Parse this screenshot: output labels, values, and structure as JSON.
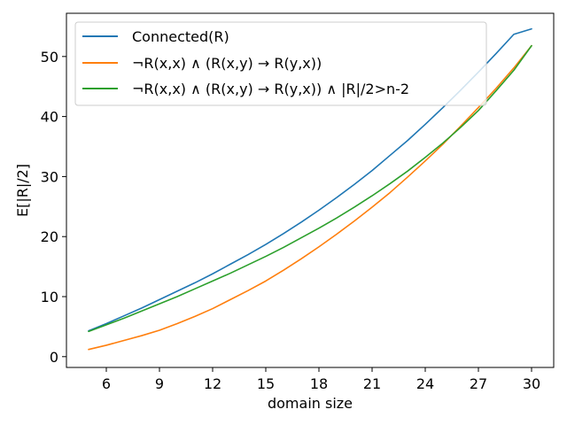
{
  "chart_data": {
    "type": "line",
    "title": "",
    "xlabel": "domain size",
    "ylabel": "E[|R|/2]",
    "xlim": [
      3.75,
      31.25
    ],
    "ylim": [
      -1.8,
      57.2
    ],
    "xticks": [
      6,
      9,
      12,
      15,
      18,
      21,
      24,
      27,
      30
    ],
    "yticks": [
      0,
      10,
      20,
      30,
      40,
      50
    ],
    "grid": false,
    "legend_position": "top-left",
    "x": [
      5,
      6,
      7,
      8,
      9,
      10,
      11,
      12,
      13,
      14,
      15,
      16,
      17,
      18,
      19,
      20,
      21,
      22,
      23,
      24,
      25,
      26,
      27,
      28,
      29,
      30
    ],
    "series": [
      {
        "name": "Connected(R)",
        "color": "#1f77b4",
        "values": [
          4.3,
          5.5,
          6.8,
          8.1,
          9.5,
          10.9,
          12.3,
          13.8,
          15.4,
          17.0,
          18.7,
          20.5,
          22.4,
          24.4,
          26.5,
          28.7,
          31.0,
          33.5,
          36.0,
          38.7,
          41.5,
          44.4,
          47.4,
          50.5,
          53.7,
          54.6
        ]
      },
      {
        "name": "¬R(x,x) ∧ (R(x,y) → R(y,x))",
        "color": "#ff7f0e",
        "values": [
          1.2,
          1.9,
          2.7,
          3.5,
          4.4,
          5.5,
          6.7,
          8.0,
          9.5,
          11.0,
          12.6,
          14.4,
          16.3,
          18.3,
          20.4,
          22.6,
          24.9,
          27.3,
          29.9,
          32.6,
          35.4,
          38.4,
          41.5,
          44.7,
          48.1,
          51.8
        ]
      },
      {
        "name": "¬R(x,x) ∧ (R(x,y) → R(y,x)) ∧ |R|/2>n-2",
        "color": "#2ca02c",
        "values": [
          4.2,
          5.3,
          6.4,
          7.6,
          8.8,
          10.0,
          11.3,
          12.6,
          13.9,
          15.3,
          16.7,
          18.2,
          19.8,
          21.4,
          23.1,
          24.9,
          26.8,
          28.8,
          30.9,
          33.2,
          35.6,
          38.2,
          41.0,
          44.3,
          47.7,
          51.8
        ]
      }
    ]
  }
}
